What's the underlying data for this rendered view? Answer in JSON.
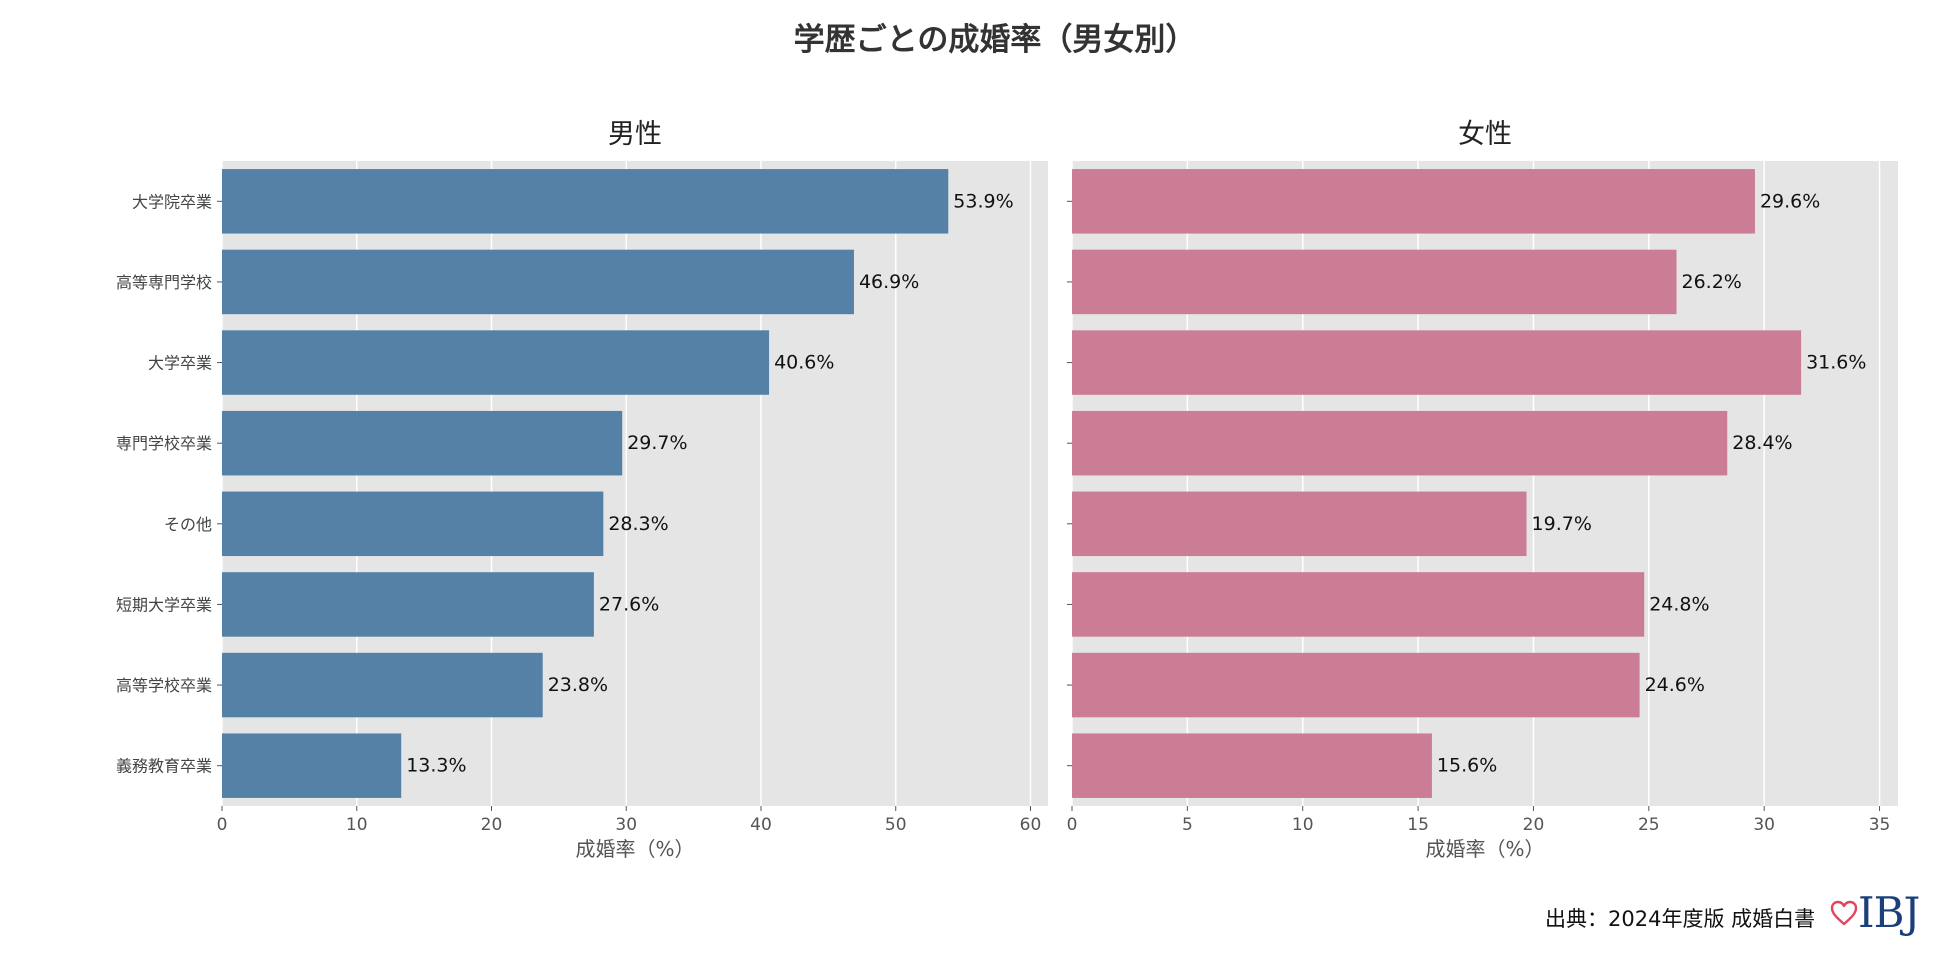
{
  "title": "学歴ごとの成婚率（男女別）",
  "source_text": "出典：2024年度版 成婚白書",
  "logo": {
    "text": "IBJ",
    "icon": "heart-outline-icon",
    "heart_color": "#e0455d",
    "text_color": "#1a3f7a"
  },
  "chart_data": [
    {
      "type": "bar",
      "orientation": "horizontal",
      "title": "男性",
      "categories": [
        "大学院卒業",
        "高等専門学校",
        "大学卒業",
        "専門学校卒業",
        "その他",
        "短期大学卒業",
        "高等学校卒業",
        "義務教育卒業"
      ],
      "values": [
        53.9,
        46.9,
        40.6,
        29.7,
        28.3,
        27.6,
        23.8,
        13.3
      ],
      "value_labels": [
        "53.9%",
        "46.9%",
        "40.6%",
        "29.7%",
        "28.3%",
        "27.6%",
        "23.8%",
        "13.3%"
      ],
      "xlabel": "成婚率（%）",
      "xlim": [
        0,
        61.3
      ],
      "xticks": [
        0,
        10,
        20,
        30,
        40,
        50,
        60
      ],
      "color": "#5681a6",
      "grid": true,
      "background": "#e5e5e5"
    },
    {
      "type": "bar",
      "orientation": "horizontal",
      "title": "女性",
      "categories": [
        "大学院卒業",
        "高等専門学校",
        "大学卒業",
        "専門学校卒業",
        "その他",
        "短期大学卒業",
        "高等学校卒業",
        "義務教育卒業"
      ],
      "values": [
        29.6,
        26.2,
        31.6,
        28.4,
        19.7,
        24.8,
        24.6,
        15.6
      ],
      "value_labels": [
        "29.6%",
        "26.2%",
        "31.6%",
        "28.4%",
        "19.7%",
        "24.8%",
        "24.6%",
        "15.6%"
      ],
      "xlabel": "成婚率（%）",
      "xlim": [
        0,
        35.8
      ],
      "xticks": [
        0,
        5,
        10,
        15,
        20,
        25,
        30,
        35
      ],
      "color": "#cb7d95",
      "grid": true,
      "background": "#e5e5e5"
    }
  ]
}
